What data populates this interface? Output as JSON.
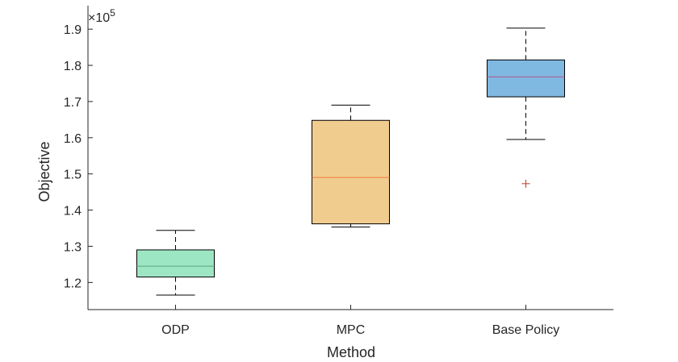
{
  "chart_data": {
    "type": "box",
    "xlabel": "Method",
    "ylabel": "Objective",
    "y_multiplier_label": "×10",
    "y_multiplier_exponent": "5",
    "ylim": [
      1.125,
      1.965
    ],
    "yticks": [
      1.2,
      1.3,
      1.4,
      1.5,
      1.6,
      1.7,
      1.8,
      1.9
    ],
    "ytick_labels": [
      "1.2",
      "1.3",
      "1.4",
      "1.5",
      "1.6",
      "1.7",
      "1.8",
      "1.9"
    ],
    "categories": [
      "ODP",
      "MPC",
      "Base Policy"
    ],
    "boxes": [
      {
        "name": "ODP",
        "whisker_low": 1.165,
        "q1": 1.215,
        "median": 1.245,
        "q3": 1.29,
        "whisker_high": 1.344,
        "outliers": [],
        "fill": "#9de6c4",
        "median_color": "#5aa77d"
      },
      {
        "name": "MPC",
        "whisker_low": 1.353,
        "q1": 1.362,
        "median": 1.49,
        "q3": 1.648,
        "whisker_high": 1.69,
        "outliers": [],
        "fill": "#f1cc8f",
        "median_color": "#f07a3c"
      },
      {
        "name": "Base Policy",
        "whisker_low": 1.595,
        "q1": 1.713,
        "median": 1.768,
        "q3": 1.815,
        "whisker_high": 1.903,
        "outliers": [
          1.473
        ],
        "fill": "#7fb8e0",
        "median_color": "#b05a8a"
      }
    ],
    "outlier_color": "#c0392b"
  }
}
